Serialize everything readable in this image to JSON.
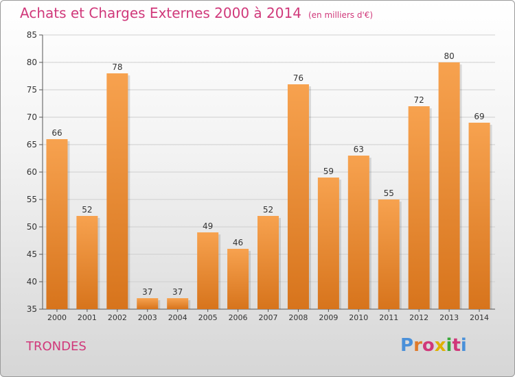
{
  "header": {
    "title": "Achats et Charges Externes 2000 à 2014",
    "subtitle": "(en milliers d'€)"
  },
  "footer": {
    "commune": "TRONDES",
    "logo": "Proxiti",
    "logo_colors": [
      "#4a90d9",
      "#e07a2a",
      "#d0387a",
      "#e0b000",
      "#38a838",
      "#d0387a",
      "#4a90d9"
    ]
  },
  "chart_data": {
    "type": "bar",
    "categories": [
      "2000",
      "2001",
      "2002",
      "2003",
      "2004",
      "2005",
      "2006",
      "2007",
      "2008",
      "2009",
      "2010",
      "2011",
      "2012",
      "2013",
      "2014"
    ],
    "values": [
      66,
      52,
      78,
      37,
      37,
      49,
      46,
      52,
      76,
      59,
      63,
      55,
      72,
      80,
      69
    ],
    "title": "Achats et Charges Externes 2000 à 2014",
    "subtitle": "(en milliers d'€)",
    "xlabel": "",
    "ylabel": "",
    "ylim": [
      35,
      85
    ],
    "yticks": [
      35,
      40,
      45,
      50,
      55,
      60,
      65,
      70,
      75,
      80,
      85
    ],
    "grid": true,
    "bar_color_top": "#f7a24f",
    "bar_color_bottom": "#d7741c"
  }
}
